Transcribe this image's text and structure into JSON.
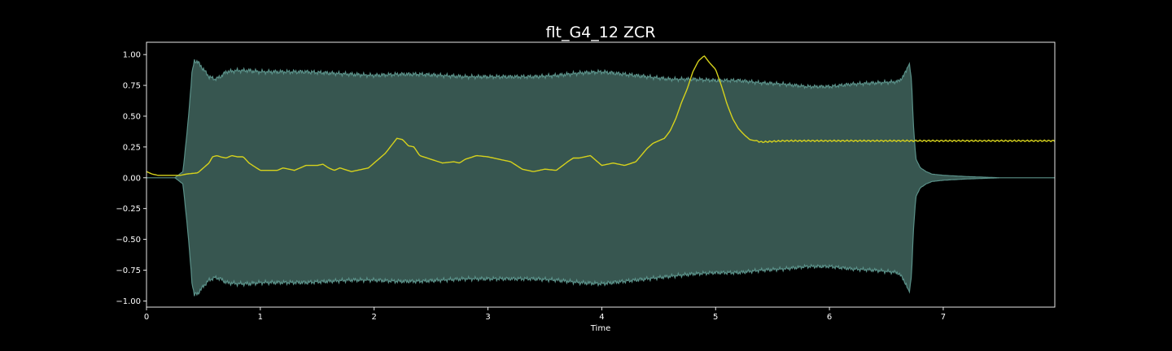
{
  "chart_data": {
    "type": "line",
    "title": "flt_G4_12 ZCR",
    "xlabel": "Time",
    "ylabel": "",
    "xlim": [
      0,
      7.98
    ],
    "ylim": [
      -1.05,
      1.1
    ],
    "x_ticks": [
      0,
      1,
      2,
      3,
      4,
      5,
      6,
      7
    ],
    "x_tick_labels": [
      "0",
      "1",
      "2",
      "3",
      "4",
      "5",
      "6",
      "7"
    ],
    "y_ticks": [
      -1.0,
      -0.75,
      -0.5,
      -0.25,
      0.0,
      0.25,
      0.5,
      0.75,
      1.0
    ],
    "y_tick_labels": [
      "−1.00",
      "−0.75",
      "−0.50",
      "−0.25",
      "0.00",
      "0.25",
      "0.50",
      "0.75",
      "1.00"
    ],
    "grid": false,
    "colors": {
      "background": "#000000",
      "axes": "#ffffff",
      "waveform_fill": "#375650",
      "waveform_edge": "#5a9088",
      "zcr_line": "#d6d21c"
    },
    "series": [
      {
        "kind": "waveform_envelope",
        "x": [
          0,
          0.25,
          0.32,
          0.36,
          0.4,
          0.42,
          0.45,
          0.5,
          0.55,
          0.6,
          0.65,
          0.7,
          0.8,
          0.9,
          1.0,
          1.2,
          1.4,
          1.6,
          1.8,
          2.0,
          2.2,
          2.4,
          2.6,
          2.8,
          3.0,
          3.2,
          3.4,
          3.6,
          3.8,
          4.0,
          4.2,
          4.4,
          4.6,
          4.8,
          5.0,
          5.2,
          5.4,
          5.6,
          5.8,
          6.0,
          6.2,
          6.4,
          6.6,
          6.65,
          6.7,
          6.72,
          6.74,
          6.76,
          6.8,
          6.85,
          6.9,
          7.0,
          7.2,
          7.5,
          7.98
        ],
        "upper": [
          0.0,
          0.0,
          0.05,
          0.4,
          0.85,
          0.95,
          0.94,
          0.88,
          0.82,
          0.8,
          0.82,
          0.86,
          0.87,
          0.87,
          0.86,
          0.86,
          0.86,
          0.85,
          0.84,
          0.83,
          0.84,
          0.84,
          0.83,
          0.82,
          0.82,
          0.82,
          0.82,
          0.83,
          0.85,
          0.86,
          0.84,
          0.82,
          0.8,
          0.8,
          0.79,
          0.79,
          0.77,
          0.76,
          0.74,
          0.74,
          0.76,
          0.77,
          0.78,
          0.82,
          0.93,
          0.8,
          0.4,
          0.15,
          0.08,
          0.05,
          0.03,
          0.02,
          0.01,
          0.0,
          0.0
        ],
        "lower": [
          0.0,
          0.0,
          -0.05,
          -0.4,
          -0.85,
          -0.95,
          -0.94,
          -0.88,
          -0.83,
          -0.81,
          -0.82,
          -0.85,
          -0.86,
          -0.86,
          -0.85,
          -0.85,
          -0.85,
          -0.84,
          -0.83,
          -0.83,
          -0.84,
          -0.84,
          -0.83,
          -0.82,
          -0.82,
          -0.82,
          -0.82,
          -0.83,
          -0.85,
          -0.86,
          -0.84,
          -0.82,
          -0.8,
          -0.78,
          -0.77,
          -0.77,
          -0.75,
          -0.74,
          -0.72,
          -0.72,
          -0.74,
          -0.75,
          -0.77,
          -0.82,
          -0.93,
          -0.8,
          -0.4,
          -0.15,
          -0.08,
          -0.05,
          -0.03,
          -0.02,
          -0.01,
          0.0,
          0.0
        ]
      },
      {
        "kind": "zcr_line",
        "x": [
          0,
          0.05,
          0.1,
          0.2,
          0.3,
          0.35,
          0.45,
          0.5,
          0.55,
          0.58,
          0.62,
          0.65,
          0.7,
          0.75,
          0.8,
          0.85,
          0.9,
          1.0,
          1.1,
          1.15,
          1.2,
          1.25,
          1.3,
          1.4,
          1.5,
          1.55,
          1.6,
          1.65,
          1.7,
          1.8,
          1.9,
          1.95,
          2.0,
          2.05,
          2.1,
          2.15,
          2.2,
          2.25,
          2.3,
          2.35,
          2.4,
          2.5,
          2.6,
          2.7,
          2.75,
          2.8,
          2.9,
          3.0,
          3.05,
          3.1,
          3.2,
          3.3,
          3.4,
          3.5,
          3.6,
          3.7,
          3.75,
          3.8,
          3.9,
          4.0,
          4.1,
          4.2,
          4.3,
          4.4,
          4.45,
          4.5,
          4.55,
          4.6,
          4.65,
          4.7,
          4.75,
          4.8,
          4.85,
          4.9,
          4.95,
          5.0,
          5.05,
          5.1,
          5.15,
          5.2,
          5.25,
          5.3,
          5.4,
          5.6,
          5.8,
          6.0,
          6.2,
          6.4,
          6.6,
          6.8,
          7.0,
          7.2,
          7.4,
          7.6,
          7.98
        ],
        "y": [
          0.05,
          0.03,
          0.02,
          0.02,
          0.02,
          0.03,
          0.04,
          0.08,
          0.12,
          0.17,
          0.18,
          0.17,
          0.16,
          0.18,
          0.17,
          0.17,
          0.12,
          0.06,
          0.06,
          0.06,
          0.08,
          0.07,
          0.06,
          0.1,
          0.1,
          0.11,
          0.08,
          0.06,
          0.08,
          0.05,
          0.07,
          0.08,
          0.12,
          0.16,
          0.2,
          0.26,
          0.32,
          0.31,
          0.26,
          0.25,
          0.18,
          0.15,
          0.12,
          0.13,
          0.12,
          0.15,
          0.18,
          0.17,
          0.16,
          0.15,
          0.13,
          0.07,
          0.05,
          0.07,
          0.06,
          0.13,
          0.16,
          0.16,
          0.18,
          0.1,
          0.12,
          0.1,
          0.13,
          0.24,
          0.28,
          0.3,
          0.32,
          0.38,
          0.48,
          0.61,
          0.72,
          0.86,
          0.95,
          0.99,
          0.93,
          0.88,
          0.75,
          0.6,
          0.48,
          0.4,
          0.35,
          0.31,
          0.29,
          0.3,
          0.3,
          0.3,
          0.3,
          0.3,
          0.3,
          0.3,
          0.3,
          0.3,
          0.3,
          0.3,
          0.3
        ]
      }
    ]
  }
}
